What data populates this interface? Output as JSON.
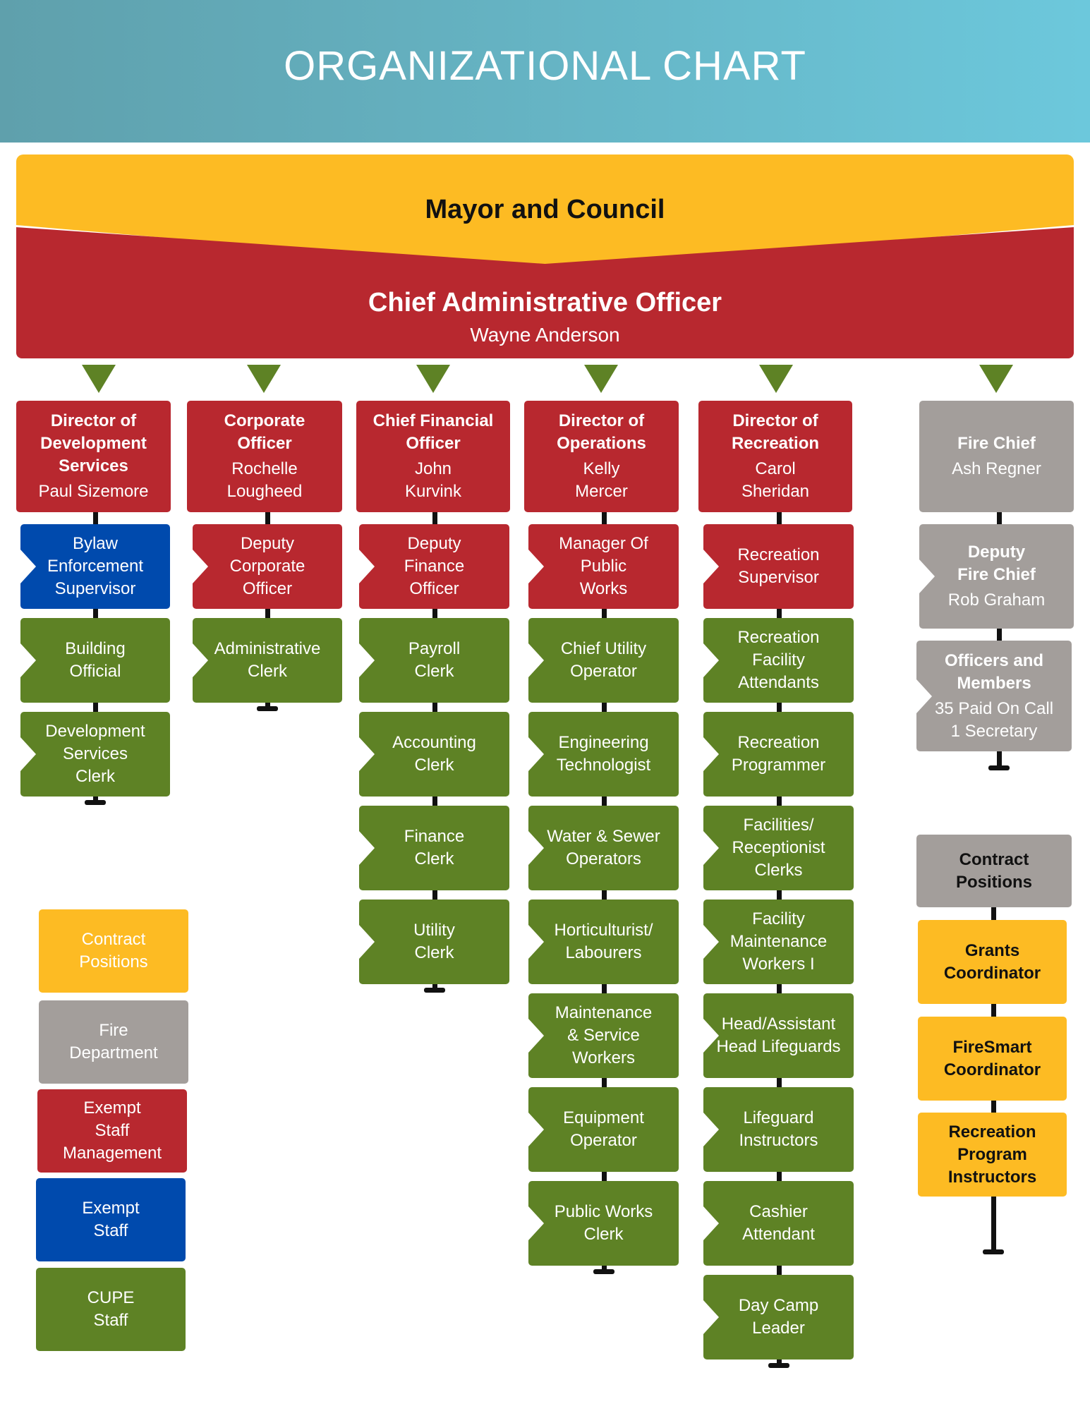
{
  "header": {
    "title": "ORGANIZATIONAL CHART"
  },
  "mayor": {
    "label": "Mayor and Council"
  },
  "cao": {
    "title": "Chief Administrative Officer",
    "name": "Wayne Anderson"
  },
  "colors": {
    "exempt_mgmt": "#b8282f",
    "exempt": "#004aad",
    "cupe": "#5e8225",
    "fire": "#a39e9b",
    "contract": "#fdbb23",
    "connector": "#111111",
    "arrow": "#5e8225"
  },
  "columns": [
    {
      "head": {
        "title": "Director of\nDevelopment\nServices",
        "name": "Paul Sizemore",
        "type": "exempt_mgmt"
      },
      "items": [
        {
          "label": "Bylaw\nEnforcement\nSupervisor",
          "type": "exempt"
        },
        {
          "label": "Building\nOfficial",
          "type": "cupe"
        },
        {
          "label": "Development\nServices\nClerk",
          "type": "cupe"
        }
      ]
    },
    {
      "head": {
        "title": "Corporate\nOfficer",
        "name": "Rochelle\nLougheed",
        "type": "exempt_mgmt"
      },
      "items": [
        {
          "label": "Deputy\nCorporate\nOfficer",
          "type": "exempt_mgmt"
        },
        {
          "label": "Administrative\nClerk",
          "type": "cupe"
        }
      ]
    },
    {
      "head": {
        "title": "Chief Financial\nOfficer",
        "name": "John\nKurvink",
        "type": "exempt_mgmt"
      },
      "items": [
        {
          "label": "Deputy\nFinance\nOfficer",
          "type": "exempt_mgmt"
        },
        {
          "label": "Payroll\nClerk",
          "type": "cupe"
        },
        {
          "label": "Accounting\nClerk",
          "type": "cupe"
        },
        {
          "label": "Finance\nClerk",
          "type": "cupe"
        },
        {
          "label": "Utility\nClerk",
          "type": "cupe"
        }
      ]
    },
    {
      "head": {
        "title": "Director of\nOperations",
        "name": "Kelly\nMercer",
        "type": "exempt_mgmt"
      },
      "items": [
        {
          "label": "Manager Of\nPublic\nWorks",
          "type": "exempt_mgmt"
        },
        {
          "label": "Chief Utility\nOperator",
          "type": "cupe"
        },
        {
          "label": "Engineering\nTechnologist",
          "type": "cupe"
        },
        {
          "label": "Water & Sewer\nOperators",
          "type": "cupe"
        },
        {
          "label": "Horticulturist/\nLabourers",
          "type": "cupe"
        },
        {
          "label": "Maintenance\n& Service\nWorkers",
          "type": "cupe"
        },
        {
          "label": "Equipment\nOperator",
          "type": "cupe"
        },
        {
          "label": "Public Works\nClerk",
          "type": "cupe"
        }
      ]
    },
    {
      "head": {
        "title": "Director of\nRecreation",
        "name": "Carol\nSheridan",
        "type": "exempt_mgmt"
      },
      "items": [
        {
          "label": "Recreation\nSupervisor",
          "type": "exempt_mgmt"
        },
        {
          "label": "Recreation\nFacility\nAttendants",
          "type": "cupe"
        },
        {
          "label": "Recreation\nProgrammer",
          "type": "cupe"
        },
        {
          "label": "Facilities/\nReceptionist\nClerks",
          "type": "cupe"
        },
        {
          "label": "Facility\nMaintenance\nWorkers I",
          "type": "cupe"
        },
        {
          "label": "Head/Assistant\nHead Lifeguards",
          "type": "cupe"
        },
        {
          "label": "Lifeguard\nInstructors",
          "type": "cupe"
        },
        {
          "label": "Cashier\nAttendant",
          "type": "cupe"
        },
        {
          "label": "Day Camp\nLeader",
          "type": "cupe"
        }
      ]
    }
  ],
  "fire": {
    "head": {
      "title": "Fire Chief",
      "name": "Ash Regner"
    },
    "deputy": {
      "title": "Deputy\nFire Chief",
      "name": "Rob Graham"
    },
    "officers": {
      "title": "Officers and\nMembers",
      "name": "35 Paid On Call\n1 Secretary"
    }
  },
  "contract": {
    "title": "Contract\nPositions",
    "items": [
      "Grants\nCoordinator",
      "FireSmart\nCoordinator",
      "Recreation\nProgram\nInstructors"
    ]
  },
  "legend": [
    {
      "label": "Contract\nPositions",
      "type": "contract"
    },
    {
      "label": "Fire\nDepartment",
      "type": "fire"
    },
    {
      "label": "Exempt\nStaff\nManagement",
      "type": "exempt_mgmt"
    },
    {
      "label": "Exempt\nStaff",
      "type": "exempt"
    },
    {
      "label": "CUPE\nStaff",
      "type": "cupe"
    }
  ]
}
